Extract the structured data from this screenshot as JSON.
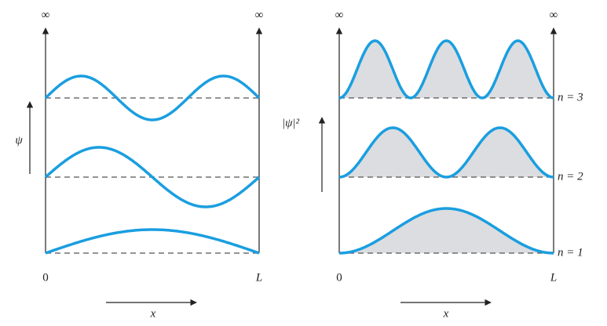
{
  "left_panel": {
    "infinity_left": "∞",
    "infinity_right": "∞",
    "axis_label": "ψ",
    "origin": "0",
    "end": "L",
    "x_label": "x"
  },
  "right_panel": {
    "infinity_left": "∞",
    "infinity_right": "∞",
    "axis_label": "|ψ|²",
    "origin": "0",
    "end": "L",
    "x_label": "x",
    "levels": [
      "n = 3",
      "n = 2",
      "n = 1"
    ]
  }
}
